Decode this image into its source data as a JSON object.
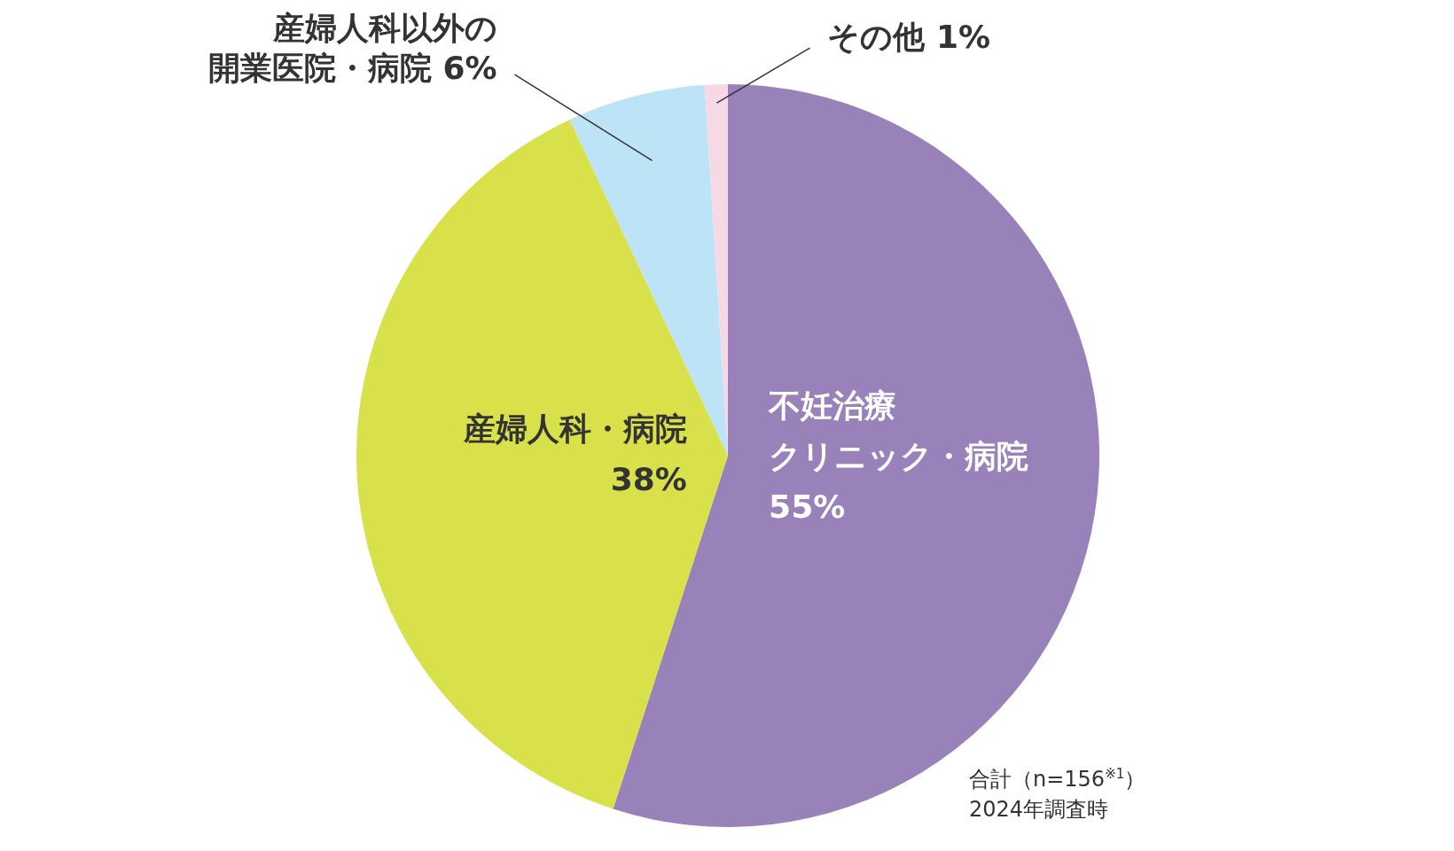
{
  "chart_data": {
    "type": "pie",
    "categories": [
      "不妊治療クリニック・病院",
      "産婦人科・病院",
      "産婦人科以外の開業医院・病院",
      "その他"
    ],
    "values": [
      55,
      38,
      6,
      1
    ],
    "colors": [
      "#9882b9",
      "#d9e14a",
      "#bde3f7",
      "#f7d9e6"
    ],
    "value_labels": [
      "55%",
      "38%",
      "6%",
      "1%"
    ],
    "legend": false,
    "annotations": [
      "合計（n=156$^{※1}$）",
      "2024年調査時"
    ]
  }
}
